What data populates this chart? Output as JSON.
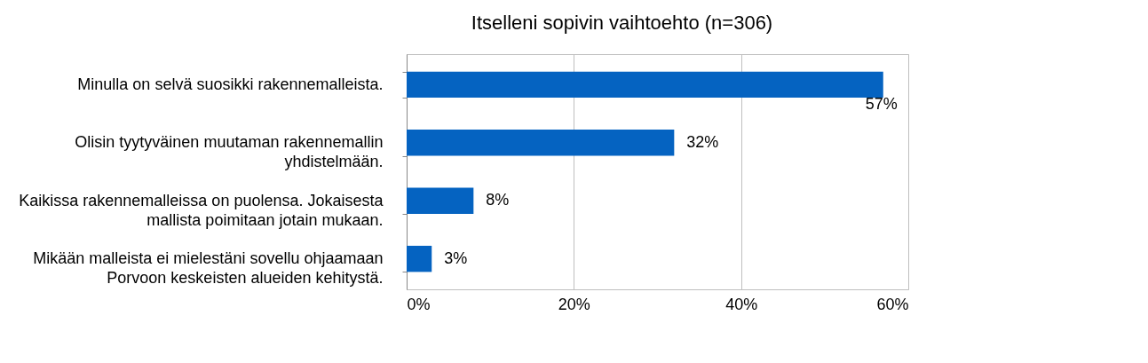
{
  "chart_data": {
    "type": "bar",
    "orientation": "horizontal",
    "title": "Itselleni sopivin vaihtoehto (n=306)",
    "categories": [
      "Minulla on selvä suosikki rakennemalleista.",
      "Olisin tyytyväinen muutaman rakennemallin yhdistelmään.",
      "Kaikissa rakennemalleissa on puolensa. Jokaisesta mallista poimitaan jotain mukaan.",
      "Mikään malleista ei mielestäni sovellu ohjaamaan Porvoon keskeisten alueiden kehitystä."
    ],
    "values": [
      57,
      32,
      8,
      3
    ],
    "value_labels": [
      "57%",
      "32%",
      "8%",
      "3%"
    ],
    "color": "#0563c1",
    "xlim": [
      0,
      60
    ],
    "xticks": [
      {
        "value": 0,
        "label": "0%"
      },
      {
        "value": 20,
        "label": "20%"
      },
      {
        "value": 40,
        "label": "40%"
      },
      {
        "value": 60,
        "label": "60%"
      }
    ],
    "grid": "x"
  }
}
